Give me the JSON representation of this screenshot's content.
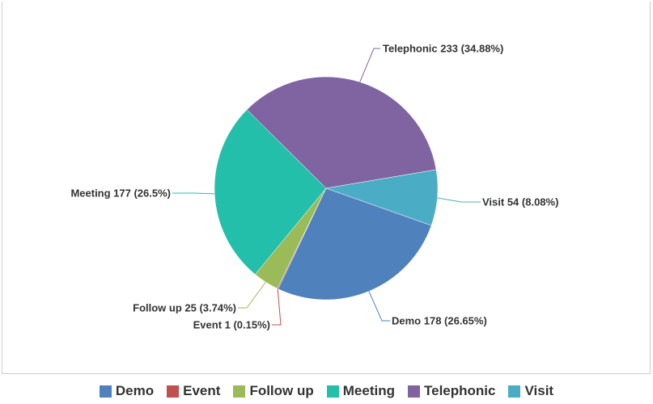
{
  "chart_data": {
    "type": "pie",
    "title": "",
    "slices": [
      {
        "label": "Demo",
        "value": 178,
        "percent": "26.65%",
        "color": "#4f81bd",
        "text": "Demo 178 (26.65%)"
      },
      {
        "label": "Event",
        "value": 1,
        "percent": "0.15%",
        "color": "#c0504d",
        "text": "Event 1 (0.15%)"
      },
      {
        "label": "Follow up",
        "value": 25,
        "percent": "3.74%",
        "color": "#9bbb59",
        "text": "Follow up 25 (3.74%)"
      },
      {
        "label": "Meeting",
        "value": 177,
        "percent": "26.5%",
        "color": "#23bfaa",
        "text": "Meeting 177 (26.5%)"
      },
      {
        "label": "Telephonic",
        "value": 233,
        "percent": "34.88%",
        "color": "#8064a2",
        "text": "Telephonic 233 (34.88%)"
      },
      {
        "label": "Visit",
        "value": 54,
        "percent": "8.08%",
        "color": "#4bacc6",
        "text": "Visit 54 (8.08%)"
      }
    ],
    "legend_position": "bottom"
  }
}
